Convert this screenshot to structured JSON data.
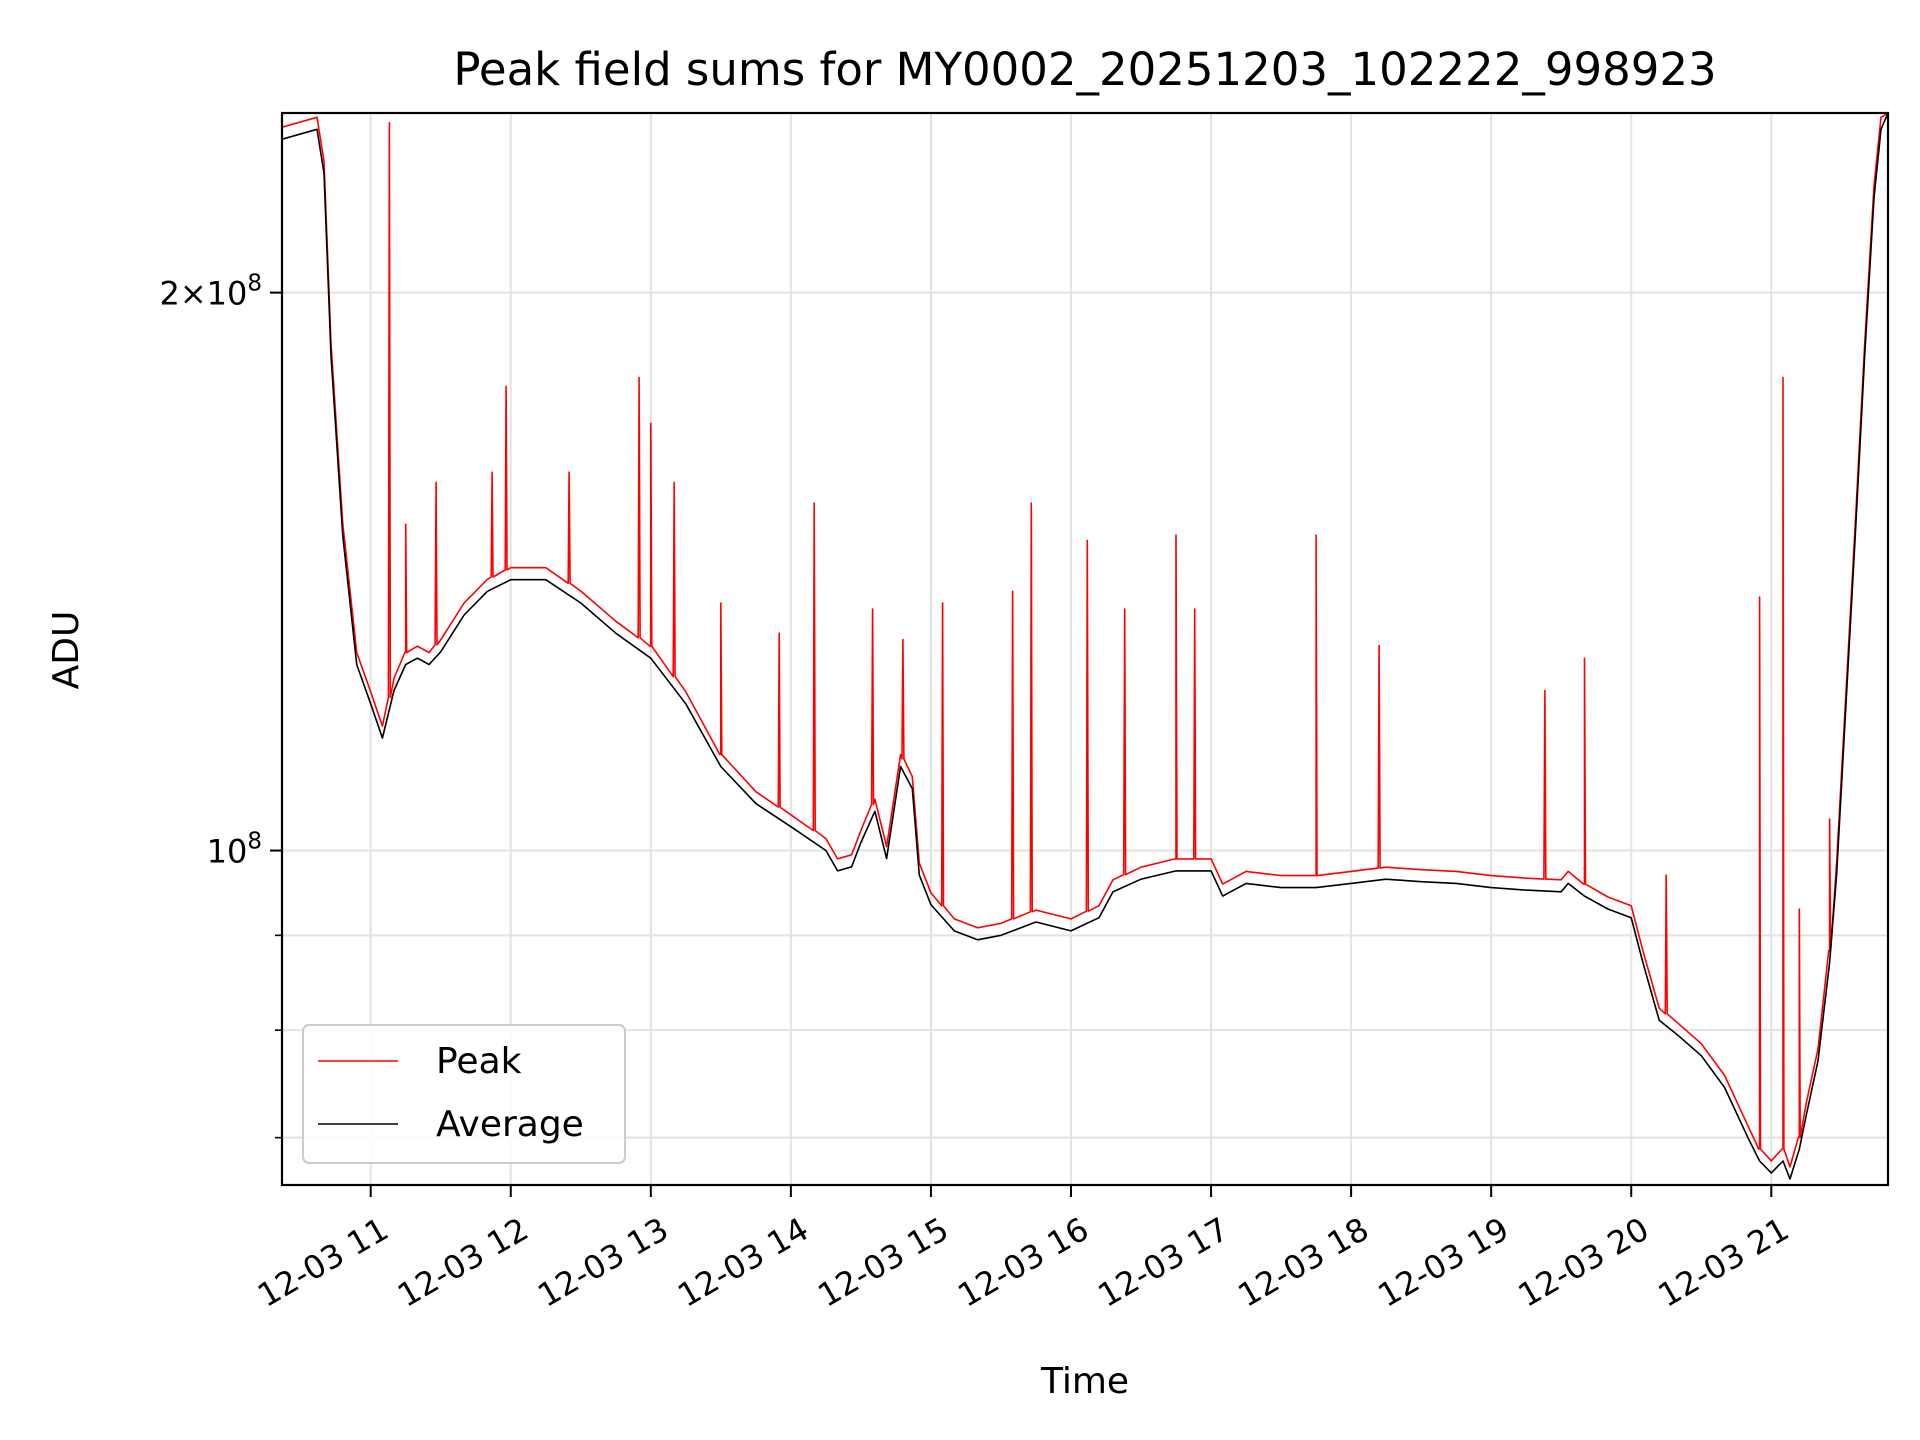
{
  "chart_data": {
    "type": "line",
    "title": "Peak field sums for MY0002_20251203_102222_998923",
    "xlabel": "Time",
    "ylabel": "ADU",
    "y_scale": "log",
    "ylim": [
      66000000,
      250000000
    ],
    "xlim": [
      "2025-12-03 10:22",
      "2025-12-03 21:50"
    ],
    "grid": true,
    "legend_position": "lower-left",
    "x_ticks": [
      "2025-12-03 11:00",
      "2025-12-03 12:00",
      "2025-12-03 13:00",
      "2025-12-03 14:00",
      "2025-12-03 15:00",
      "2025-12-03 16:00",
      "2025-12-03 17:00",
      "2025-12-03 18:00",
      "2025-12-03 19:00",
      "2025-12-03 20:00",
      "2025-12-03 21:00"
    ],
    "x_tick_labels": [
      "12-03 11",
      "12-03 12",
      "12-03 13",
      "12-03 14",
      "12-03 15",
      "12-03 16",
      "12-03 17",
      "12-03 18",
      "12-03 19",
      "12-03 20",
      "12-03 21"
    ],
    "y_major_ticks": [
      {
        "value": 100000000,
        "base": "10",
        "exp": "8"
      },
      {
        "value": 200000000,
        "mant": "2",
        "base": "10",
        "exp": "8"
      }
    ],
    "y_minor_ticks": [
      70000000,
      80000000,
      90000000,
      300000000
    ],
    "series": [
      {
        "name": "Average",
        "color": "#000000",
        "x": [
          "2025-12-03 10:22",
          "2025-12-03 10:37",
          "2025-12-03 10:40",
          "2025-12-03 10:43",
          "2025-12-03 10:48",
          "2025-12-03 10:54",
          "2025-12-03 11:00",
          "2025-12-03 11:05",
          "2025-12-03 11:10",
          "2025-12-03 11:15",
          "2025-12-03 11:20",
          "2025-12-03 11:25",
          "2025-12-03 11:30",
          "2025-12-03 11:40",
          "2025-12-03 11:50",
          "2025-12-03 12:00",
          "2025-12-03 12:15",
          "2025-12-03 12:30",
          "2025-12-03 12:45",
          "2025-12-03 13:00",
          "2025-12-03 13:15",
          "2025-12-03 13:30",
          "2025-12-03 13:45",
          "2025-12-03 14:00",
          "2025-12-03 14:15",
          "2025-12-03 14:20",
          "2025-12-03 14:26",
          "2025-12-03 14:30",
          "2025-12-03 14:36",
          "2025-12-03 14:41",
          "2025-12-03 14:47",
          "2025-12-03 14:52",
          "2025-12-03 14:55",
          "2025-12-03 15:00",
          "2025-12-03 15:10",
          "2025-12-03 15:20",
          "2025-12-03 15:30",
          "2025-12-03 15:45",
          "2025-12-03 16:00",
          "2025-12-03 16:12",
          "2025-12-03 16:18",
          "2025-12-03 16:30",
          "2025-12-03 16:45",
          "2025-12-03 17:00",
          "2025-12-03 17:05",
          "2025-12-03 17:15",
          "2025-12-03 17:30",
          "2025-12-03 17:45",
          "2025-12-03 18:00",
          "2025-12-03 18:15",
          "2025-12-03 18:30",
          "2025-12-03 18:45",
          "2025-12-03 19:00",
          "2025-12-03 19:15",
          "2025-12-03 19:30",
          "2025-12-03 19:33",
          "2025-12-03 19:40",
          "2025-12-03 19:50",
          "2025-12-03 20:00",
          "2025-12-03 20:05",
          "2025-12-03 20:12",
          "2025-12-03 20:20",
          "2025-12-03 20:30",
          "2025-12-03 20:40",
          "2025-12-03 20:50",
          "2025-12-03 20:55",
          "2025-12-03 21:00",
          "2025-12-03 21:05",
          "2025-12-03 21:08",
          "2025-12-03 21:12",
          "2025-12-03 21:15",
          "2025-12-03 21:20",
          "2025-12-03 21:25",
          "2025-12-03 21:28",
          "2025-12-03 21:32",
          "2025-12-03 21:36",
          "2025-12-03 21:40",
          "2025-12-03 21:44",
          "2025-12-03 21:47",
          "2025-12-03 21:50"
        ],
        "y": [
          242000000,
          245000000,
          232000000,
          185000000,
          148000000,
          126000000,
          120000000,
          115000000,
          122000000,
          126000000,
          127000000,
          126000000,
          128000000,
          134000000,
          138000000,
          140000000,
          140000000,
          136000000,
          131000000,
          127000000,
          120000000,
          111000000,
          106000000,
          103000000,
          100000000,
          97500000,
          98000000,
          101000000,
          105000000,
          99000000,
          111000000,
          108000000,
          97000000,
          93500000,
          90500000,
          89500000,
          90000000,
          91500000,
          90500000,
          92000000,
          95000000,
          96500000,
          97500000,
          97500000,
          94500000,
          96000000,
          95500000,
          95500000,
          96000000,
          96500000,
          96200000,
          96000000,
          95500000,
          95200000,
          95000000,
          96000000,
          94500000,
          93000000,
          92000000,
          87000000,
          81000000,
          79500000,
          77500000,
          74500000,
          70000000,
          68000000,
          67000000,
          68000000,
          66500000,
          69000000,
          72000000,
          77000000,
          87000000,
          97000000,
          120000000,
          148000000,
          185000000,
          225000000,
          245000000,
          250000000
        ]
      },
      {
        "name": "Peak",
        "color": "#ff0000",
        "spikes": [
          {
            "x": "2025-12-03 11:08",
            "y": 247000000
          },
          {
            "x": "2025-12-03 11:15",
            "y": 150000000
          },
          {
            "x": "2025-12-03 11:28",
            "y": 158000000
          },
          {
            "x": "2025-12-03 11:52",
            "y": 160000000
          },
          {
            "x": "2025-12-03 11:58",
            "y": 178000000
          },
          {
            "x": "2025-12-03 12:25",
            "y": 160000000
          },
          {
            "x": "2025-12-03 12:55",
            "y": 180000000
          },
          {
            "x": "2025-12-03 13:00",
            "y": 170000000
          },
          {
            "x": "2025-12-03 13:10",
            "y": 158000000
          },
          {
            "x": "2025-12-03 13:30",
            "y": 136000000
          },
          {
            "x": "2025-12-03 13:55",
            "y": 131000000
          },
          {
            "x": "2025-12-03 14:10",
            "y": 154000000
          },
          {
            "x": "2025-12-03 14:35",
            "y": 135000000
          },
          {
            "x": "2025-12-03 14:48",
            "y": 130000000
          },
          {
            "x": "2025-12-03 15:05",
            "y": 136000000
          },
          {
            "x": "2025-12-03 15:35",
            "y": 138000000
          },
          {
            "x": "2025-12-03 15:43",
            "y": 154000000
          },
          {
            "x": "2025-12-03 16:07",
            "y": 147000000
          },
          {
            "x": "2025-12-03 16:23",
            "y": 135000000
          },
          {
            "x": "2025-12-03 16:45",
            "y": 148000000
          },
          {
            "x": "2025-12-03 16:53",
            "y": 135000000
          },
          {
            "x": "2025-12-03 17:45",
            "y": 148000000
          },
          {
            "x": "2025-12-03 18:12",
            "y": 129000000
          },
          {
            "x": "2025-12-03 19:23",
            "y": 122000000
          },
          {
            "x": "2025-12-03 19:40",
            "y": 127000000
          },
          {
            "x": "2025-12-03 20:15",
            "y": 97000000
          },
          {
            "x": "2025-12-03 20:55",
            "y": 137000000
          },
          {
            "x": "2025-12-03 21:05",
            "y": 180000000
          },
          {
            "x": "2025-12-03 21:12",
            "y": 93000000
          },
          {
            "x": "2025-12-03 21:25",
            "y": 104000000
          }
        ]
      }
    ],
    "legend": [
      {
        "label": "Peak",
        "color": "#ff0000"
      },
      {
        "label": "Average",
        "color": "#000000"
      }
    ]
  }
}
